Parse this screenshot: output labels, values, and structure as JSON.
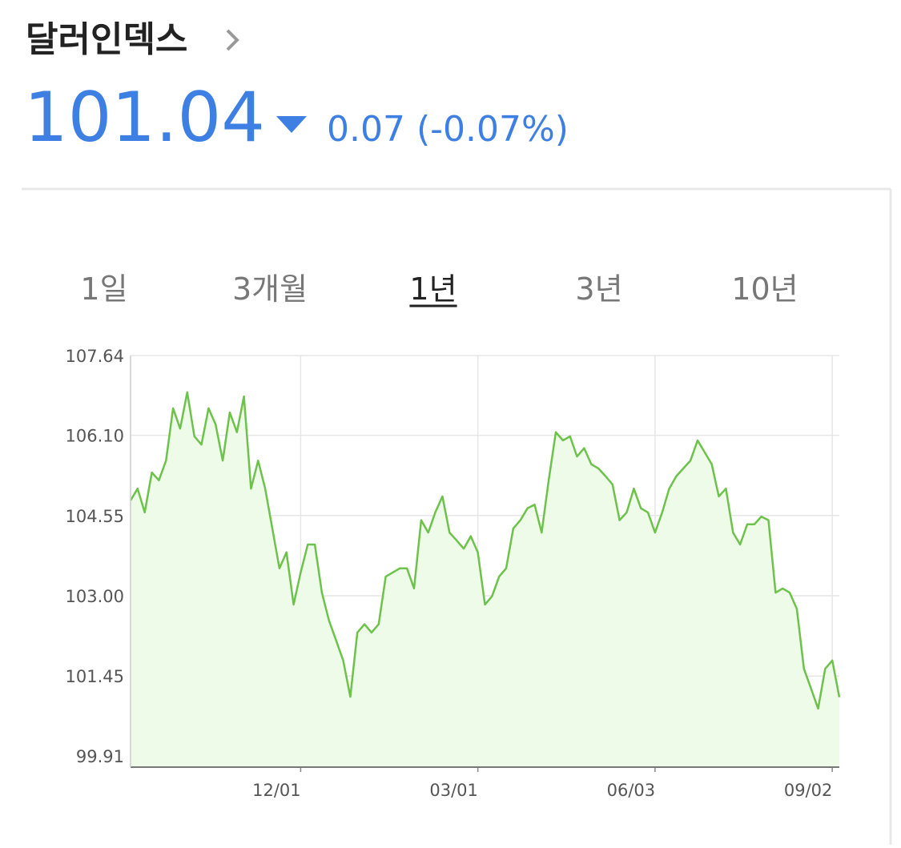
{
  "header": {
    "title": "달러인덱스",
    "price": "101.04",
    "change": "0.07",
    "change_pct": "(-0.07%)"
  },
  "tabs": {
    "items": [
      "1일",
      "3개월",
      "1년",
      "3년",
      "10년"
    ],
    "active": 2
  },
  "chart_data": {
    "type": "line",
    "categories": [
      null,
      null,
      null,
      null,
      null,
      null,
      null,
      null,
      null,
      null,
      null,
      null,
      null,
      null,
      null,
      null,
      null,
      null,
      null,
      null,
      null,
      null,
      null,
      null,
      "12/01",
      null,
      null,
      null,
      null,
      null,
      null,
      null,
      null,
      null,
      null,
      null,
      null,
      null,
      null,
      null,
      null,
      null,
      null,
      null,
      null,
      null,
      null,
      null,
      null,
      "03/01",
      null,
      null,
      null,
      null,
      null,
      null,
      null,
      null,
      null,
      null,
      null,
      null,
      null,
      null,
      null,
      null,
      null,
      null,
      null,
      null,
      null,
      null,
      null,
      null,
      "06/03",
      null,
      null,
      null,
      null,
      null,
      null,
      null,
      null,
      null,
      null,
      null,
      null,
      null,
      null,
      null,
      null,
      null,
      null,
      null,
      null,
      null,
      null,
      null,
      null,
      "09/02",
      null
    ],
    "values": [
      104.84,
      105.07,
      104.61,
      105.38,
      105.23,
      105.61,
      106.62,
      106.23,
      106.93,
      106.08,
      105.92,
      106.62,
      106.31,
      105.61,
      106.54,
      106.16,
      106.85,
      105.07,
      105.61,
      105.07,
      104.3,
      103.53,
      103.84,
      102.83,
      103.45,
      103.99,
      103.99,
      103.06,
      102.52,
      102.14,
      101.75,
      101.05,
      102.29,
      102.45,
      102.29,
      102.45,
      103.37,
      103.45,
      103.53,
      103.53,
      103.14,
      104.46,
      104.22,
      104.61,
      104.92,
      104.22,
      104.07,
      103.91,
      104.15,
      103.84,
      102.83,
      102.99,
      103.37,
      103.53,
      104.3,
      104.46,
      104.69,
      104.76,
      104.22,
      105.23,
      106.16,
      106.0,
      106.08,
      105.69,
      105.85,
      105.54,
      105.46,
      105.31,
      105.15,
      104.46,
      104.61,
      105.07,
      104.69,
      104.61,
      104.22,
      104.61,
      105.07,
      105.31,
      105.46,
      105.61,
      106.0,
      105.77,
      105.54,
      104.92,
      105.07,
      104.22,
      103.99,
      104.38,
      104.38,
      104.53,
      104.46,
      103.06,
      103.14,
      103.06,
      102.75,
      101.59,
      101.21,
      100.82,
      101.59,
      101.75,
      101.04
    ],
    "color": "#6cc24a",
    "fill": "#eefbe8",
    "ylim": [
      99.69,
      107.64
    ],
    "yticks": [
      107.64,
      {
        "value": 106.1,
        "label": "106.10"
      },
      104.55,
      {
        "value": 103.0,
        "label": "103.00"
      },
      101.45,
      99.91
    ],
    "grid": true
  }
}
